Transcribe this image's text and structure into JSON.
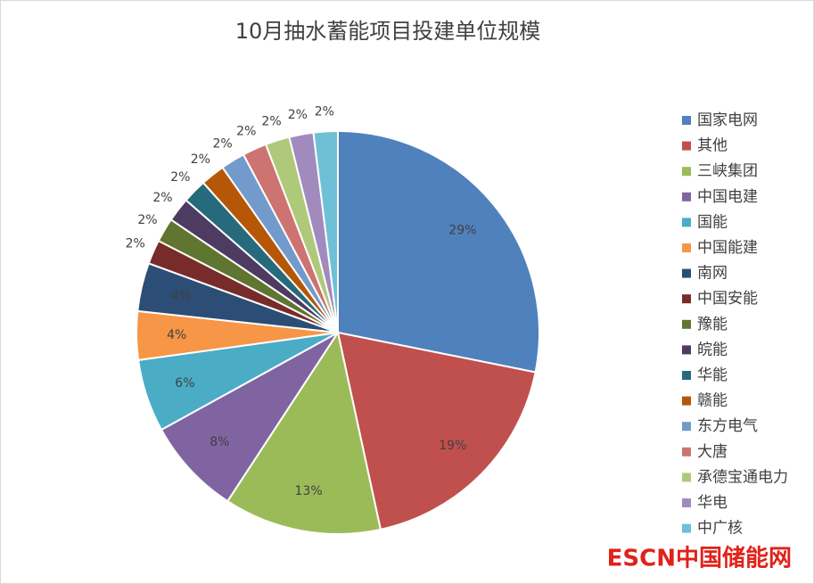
{
  "chart_data": {
    "type": "pie",
    "title": "10月抽水蓄能项目投建单位规模",
    "categories": [
      "国家电网",
      "其他",
      "三峡集团",
      "中国电建",
      "国能",
      "中国能建",
      "南网",
      "中国安能",
      "豫能",
      "皖能",
      "华能",
      "赣能",
      "东方电气",
      "大唐",
      "承德宝通电力",
      "华电",
      "中广核"
    ],
    "values": [
      29,
      19,
      13,
      8,
      6,
      4,
      4,
      2,
      2,
      2,
      2,
      2,
      2,
      2,
      2,
      2,
      2
    ],
    "value_labels": [
      "29%",
      "19%",
      "13%",
      "8%",
      "6%",
      "4%",
      "4%",
      "2%",
      "2%",
      "2%",
      "2%",
      "2%",
      "2%",
      "2%",
      "2%",
      "2%",
      "2%"
    ],
    "colors": [
      "#4f81bd",
      "#c0504d",
      "#9bbb59",
      "#8064a2",
      "#4bacc6",
      "#f79646",
      "#2c4d75",
      "#772c2a",
      "#5f7530",
      "#4d3b62",
      "#276a7c",
      "#b65708",
      "#729aca",
      "#cd7371",
      "#afc97a",
      "#a18bbe",
      "#6fc0d6"
    ],
    "legend": "right",
    "watermark": "ESCN中国储能网"
  }
}
